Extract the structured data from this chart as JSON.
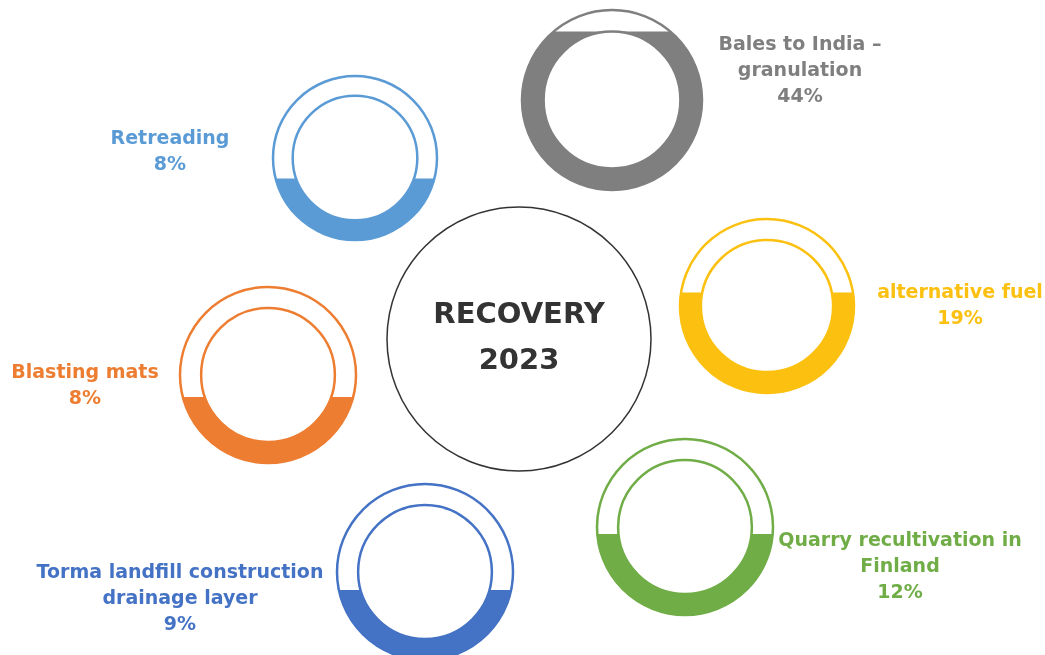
{
  "chart_data": {
    "type": "other",
    "title": "RECOVERY 2023",
    "categories": [
      "Retreading",
      "Bales to India – granulation",
      "alternative fuel",
      "Quarry recultivation in Finland",
      "Torma landfill construction drainage layer",
      "Blasting mats"
    ],
    "values": [
      8,
      44,
      19,
      12,
      9,
      8
    ],
    "value_labels": [
      "8%",
      "44%",
      "19%",
      "12%",
      "9%",
      "8%"
    ],
    "colors": [
      "#5b9bd5",
      "#7f7f7f",
      "#fcc010",
      "#70ad47",
      "#4472c4",
      "#ed7d31"
    ]
  }
}
